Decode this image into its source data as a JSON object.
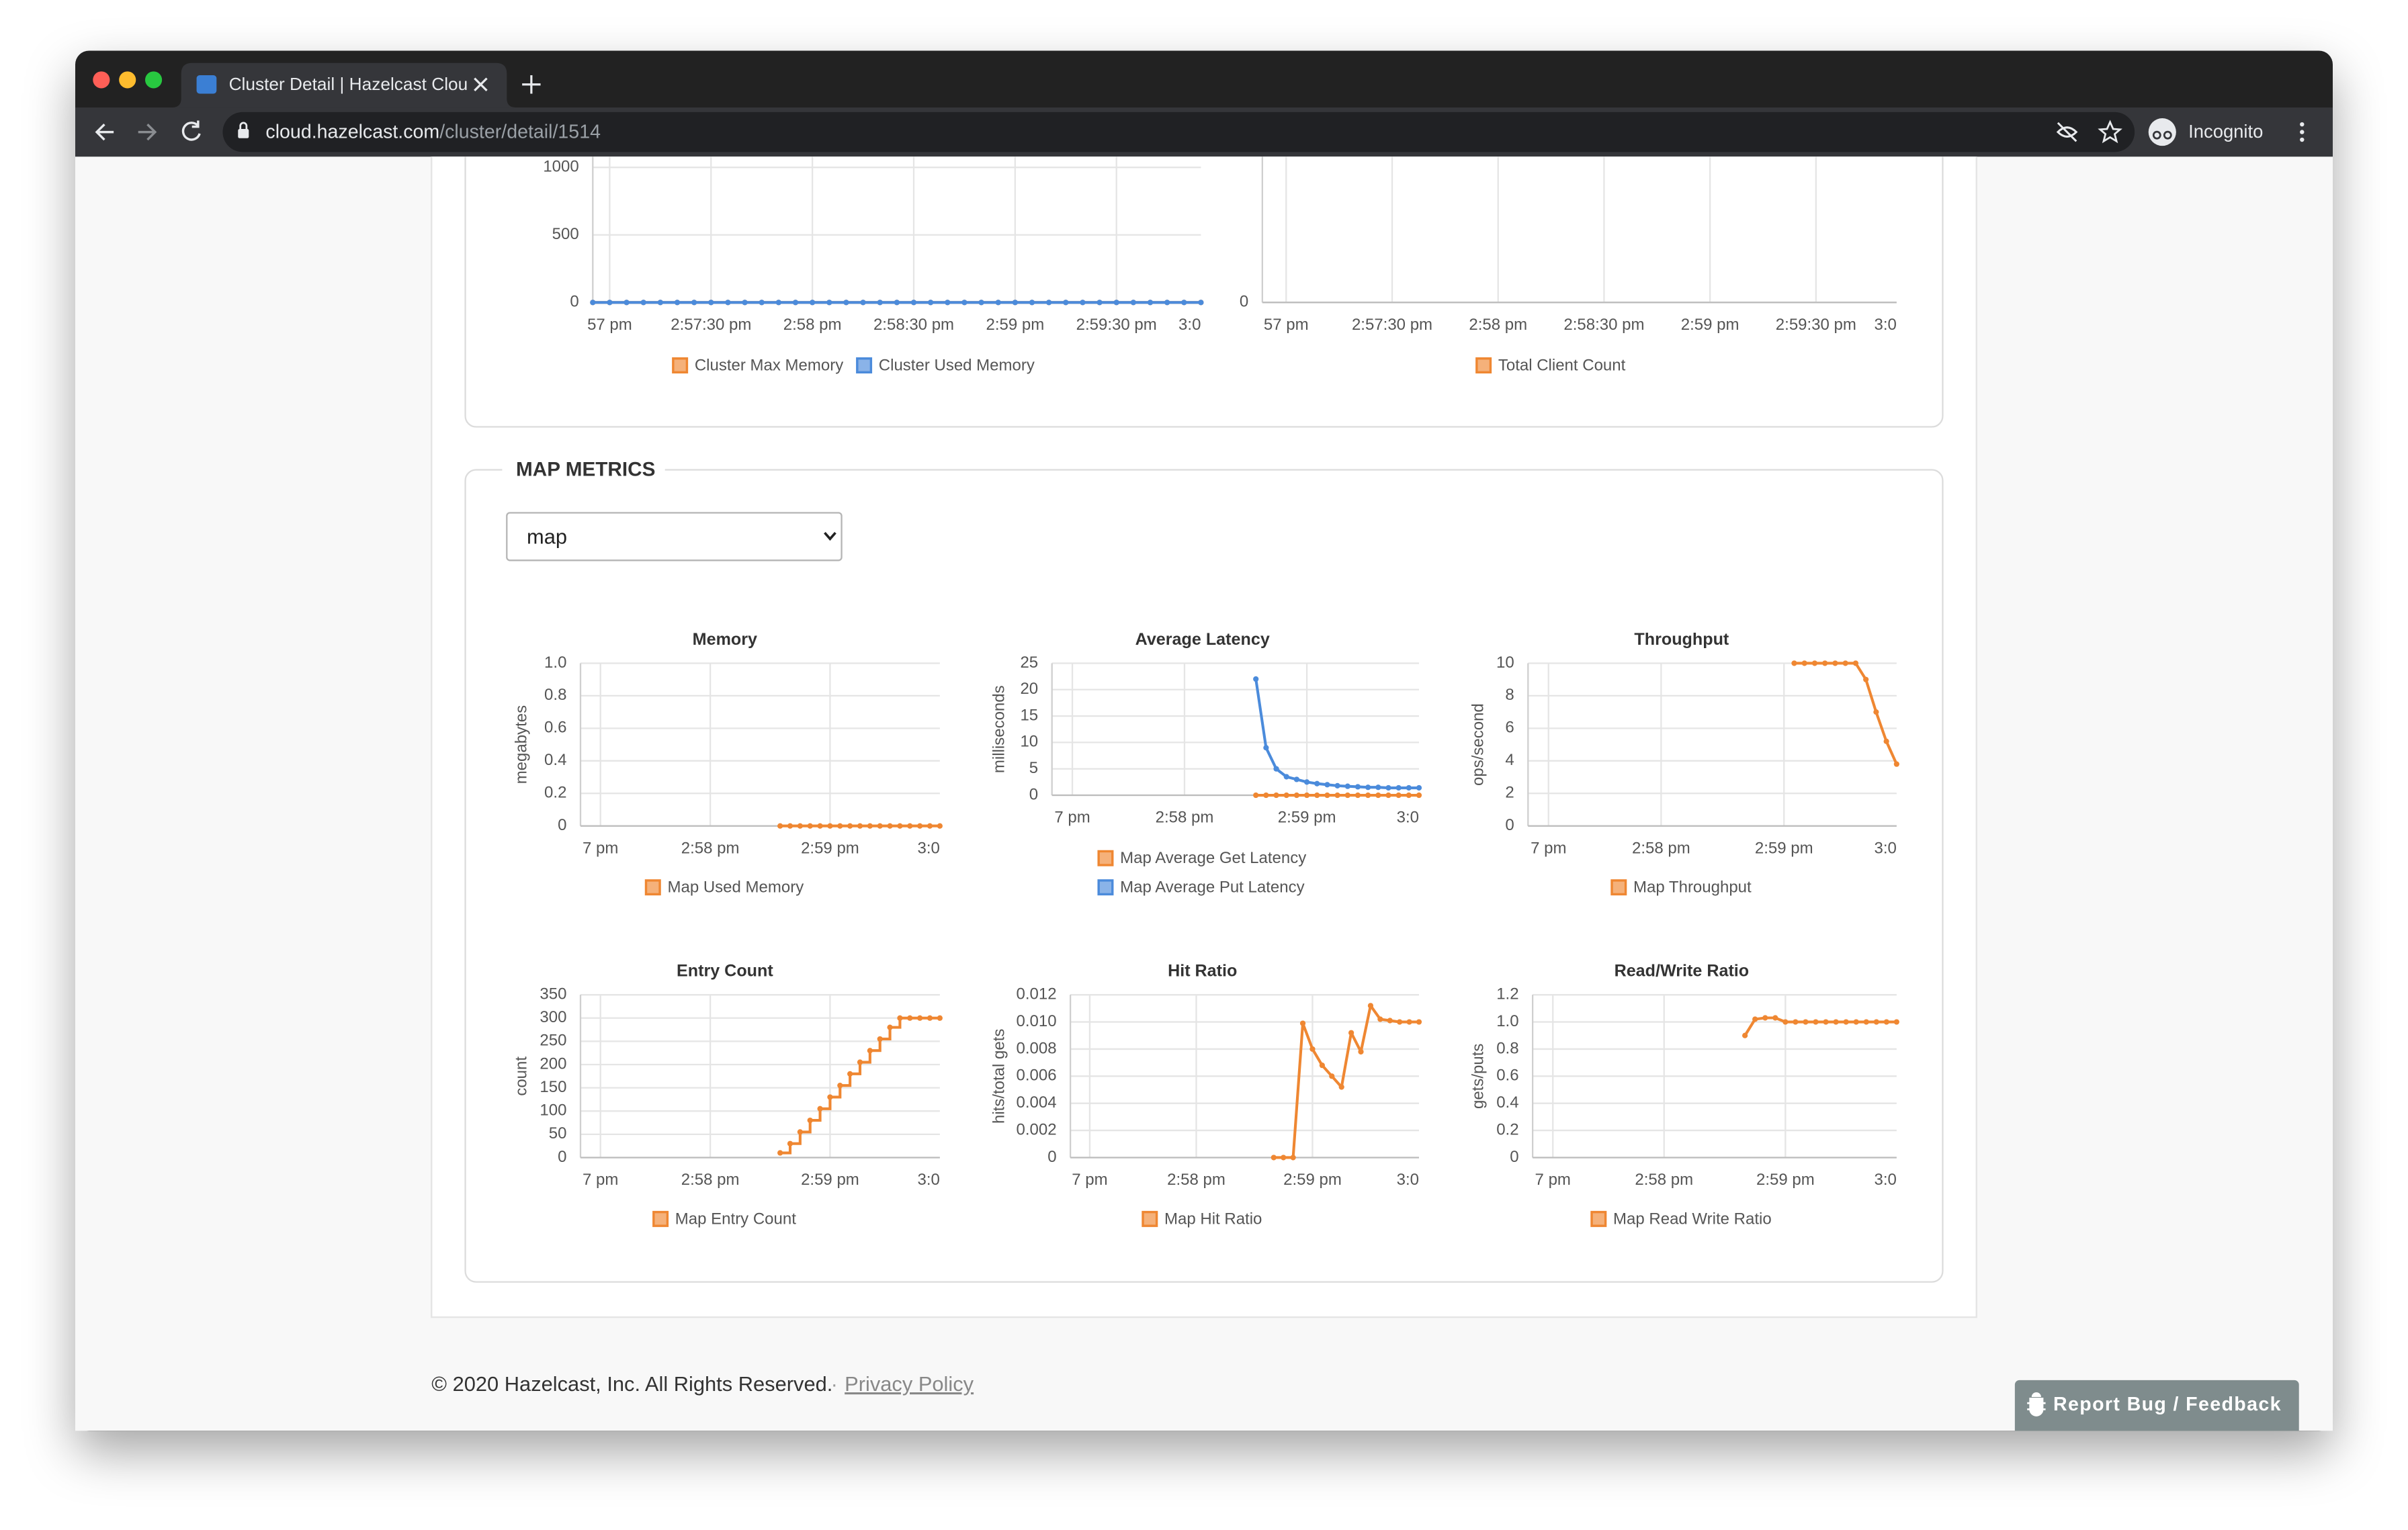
{
  "browser": {
    "tab_title": "Cluster Detail | Hazelcast Clou",
    "url_host": "cloud.hazelcast.com",
    "url_path": "/cluster/detail/1514",
    "profile": "Incognito"
  },
  "page": {
    "section_title": "MAP METRICS",
    "select_value": "map",
    "footer": {
      "copyright": "© 2020 Hazelcast, Inc. All Rights Reserved.",
      "separator": "·",
      "privacy": "Privacy Policy"
    },
    "feedback_button": "Report Bug / Feedback"
  },
  "chart_data": [
    {
      "type": "line",
      "legend": "bottom",
      "grid": true,
      "markers": true,
      "categories": [
        null,
        "57 pm",
        null,
        null,
        null,
        null,
        null,
        "2:57:30 pm",
        null,
        null,
        null,
        null,
        null,
        "2:58 pm",
        null,
        null,
        null,
        null,
        null,
        "2:58:30 pm",
        null,
        null,
        null,
        null,
        null,
        "2:59 pm",
        null,
        null,
        null,
        null,
        null,
        "2:59:30 pm",
        null,
        null,
        null,
        null,
        null,
        "3:0"
      ],
      "series": [
        {
          "name": "Cluster Max Memory",
          "color": "#ef8732",
          "values": [
            0,
            0,
            0,
            0,
            0,
            0,
            0,
            0,
            0,
            0,
            0,
            0,
            0,
            0,
            0,
            0,
            0,
            0,
            0,
            0,
            0,
            0,
            0,
            0,
            0,
            0,
            0,
            0,
            0,
            0,
            0,
            0,
            0,
            0,
            0,
            0,
            0,
            null
          ]
        },
        {
          "name": "Cluster Used Memory",
          "color": "#4b8bdb",
          "values": [
            0,
            0,
            0,
            0,
            0,
            0,
            0,
            0,
            0,
            0,
            0,
            0,
            0,
            0,
            0,
            0,
            0,
            0,
            0,
            0,
            0,
            0,
            0,
            0,
            0,
            0,
            0,
            0,
            0,
            0,
            0,
            0,
            0,
            0,
            0,
            0,
            0,
            null
          ]
        }
      ],
      "ylim": [
        0,
        1000
      ],
      "yticks": [
        0,
        500,
        1000
      ]
    },
    {
      "type": "line",
      "legend": "bottom",
      "grid": true,
      "markers": true,
      "categories": [
        null,
        "57 pm",
        null,
        null,
        null,
        null,
        null,
        "2:57:30 pm",
        null,
        null,
        null,
        null,
        null,
        "2:58 pm",
        null,
        null,
        null,
        null,
        null,
        "2:58:30 pm",
        null,
        null,
        null,
        null,
        null,
        "2:59 pm",
        null,
        null,
        null,
        null,
        null,
        "2:59:30 pm",
        null,
        null,
        null,
        null,
        null,
        "3:0"
      ],
      "series": [
        {
          "name": "Total Client Count",
          "color": "#ef8732",
          "values": [
            null,
            null,
            null,
            null,
            null,
            null,
            null,
            null,
            null,
            null,
            null,
            null,
            null,
            null,
            null,
            null,
            null,
            null,
            null,
            null,
            null,
            null,
            null,
            null,
            null,
            null,
            null,
            null,
            null,
            null,
            null,
            null,
            null,
            null,
            null,
            null,
            null,
            null
          ]
        }
      ],
      "ylim": [
        0,
        1
      ],
      "yticks": [
        0
      ]
    },
    {
      "type": "line",
      "title": "Memory",
      "y_label": "megabytes",
      "legend": "bottom",
      "grid": true,
      "markers": true,
      "categories": [
        null,
        null,
        "7 pm",
        null,
        null,
        null,
        null,
        null,
        null,
        null,
        null,
        null,
        null,
        "2:58 pm",
        null,
        null,
        null,
        null,
        null,
        null,
        null,
        null,
        null,
        null,
        null,
        "2:59 pm",
        null,
        null,
        null,
        null,
        null,
        null,
        null,
        null,
        null,
        null,
        "3:0"
      ],
      "series": [
        {
          "name": "Map Used Memory",
          "color": "#ef8732",
          "values": [
            null,
            null,
            null,
            null,
            null,
            null,
            null,
            null,
            null,
            null,
            null,
            null,
            null,
            null,
            null,
            null,
            null,
            null,
            null,
            null,
            0,
            0,
            0,
            0,
            0,
            0,
            0,
            0,
            0,
            0,
            0,
            0,
            0,
            0,
            0,
            0,
            0
          ]
        }
      ],
      "ylim": [
        0,
        1
      ],
      "yticks": [
        0,
        0.2,
        0.4,
        0.6,
        0.8,
        {
          "value": 1,
          "label": "1.0"
        }
      ]
    },
    {
      "type": "line",
      "title": "Average Latency",
      "y_label": "milliseconds",
      "legend": "bottom",
      "grid": true,
      "markers": true,
      "categories": [
        null,
        null,
        "7 pm",
        null,
        null,
        null,
        null,
        null,
        null,
        null,
        null,
        null,
        null,
        "2:58 pm",
        null,
        null,
        null,
        null,
        null,
        null,
        null,
        null,
        null,
        null,
        null,
        "2:59 pm",
        null,
        null,
        null,
        null,
        null,
        null,
        null,
        null,
        null,
        null,
        "3:0"
      ],
      "series": [
        {
          "name": "Map Average Get Latency",
          "color": "#ef8732",
          "values": [
            null,
            null,
            null,
            null,
            null,
            null,
            null,
            null,
            null,
            null,
            null,
            null,
            null,
            null,
            null,
            null,
            null,
            null,
            null,
            null,
            0,
            0,
            0,
            0,
            0,
            0,
            0,
            0,
            0,
            0,
            0,
            0,
            0,
            0,
            0,
            0,
            0
          ]
        },
        {
          "name": "Map Average Put Latency",
          "color": "#4b8bdb",
          "values": [
            null,
            null,
            null,
            null,
            null,
            null,
            null,
            null,
            null,
            null,
            null,
            null,
            null,
            null,
            null,
            null,
            null,
            null,
            null,
            null,
            22,
            9,
            5,
            3.5,
            3,
            2.5,
            2.2,
            2,
            1.8,
            1.7,
            1.6,
            1.5,
            1.5,
            1.4,
            1.4,
            1.4,
            1.4
          ]
        }
      ],
      "ylim": [
        0,
        25
      ],
      "yticks": [
        0,
        5,
        10,
        15,
        20,
        25
      ]
    },
    {
      "type": "line",
      "title": "Throughput",
      "y_label": "ops/second",
      "legend": "bottom",
      "grid": true,
      "markers": true,
      "categories": [
        null,
        null,
        "7 pm",
        null,
        null,
        null,
        null,
        null,
        null,
        null,
        null,
        null,
        null,
        "2:58 pm",
        null,
        null,
        null,
        null,
        null,
        null,
        null,
        null,
        null,
        null,
        null,
        "2:59 pm",
        null,
        null,
        null,
        null,
        null,
        null,
        null,
        null,
        null,
        null,
        "3:0"
      ],
      "series": [
        {
          "name": "Map Throughput",
          "color": "#ef8732",
          "values": [
            null,
            null,
            null,
            null,
            null,
            null,
            null,
            null,
            null,
            null,
            null,
            null,
            null,
            null,
            null,
            null,
            null,
            null,
            null,
            null,
            null,
            null,
            null,
            null,
            null,
            null,
            10,
            10,
            10,
            10,
            10,
            10,
            10,
            9,
            7,
            5.2,
            3.8
          ]
        }
      ],
      "ylim": [
        0,
        10
      ],
      "yticks": [
        0,
        2,
        4,
        6,
        8,
        10
      ]
    },
    {
      "type": "line",
      "title": "Entry Count",
      "y_label": "count",
      "legend": "bottom",
      "grid": true,
      "markers": true,
      "step": true,
      "categories": [
        null,
        null,
        "7 pm",
        null,
        null,
        null,
        null,
        null,
        null,
        null,
        null,
        null,
        null,
        "2:58 pm",
        null,
        null,
        null,
        null,
        null,
        null,
        null,
        null,
        null,
        null,
        null,
        "2:59 pm",
        null,
        null,
        null,
        null,
        null,
        null,
        null,
        null,
        null,
        null,
        "3:0"
      ],
      "series": [
        {
          "name": "Map Entry Count",
          "color": "#ef8732",
          "values": [
            null,
            null,
            null,
            null,
            null,
            null,
            null,
            null,
            null,
            null,
            null,
            null,
            null,
            null,
            null,
            null,
            null,
            null,
            null,
            null,
            10,
            30,
            55,
            80,
            105,
            130,
            155,
            180,
            205,
            230,
            255,
            280,
            300,
            300,
            300,
            300,
            300
          ]
        }
      ],
      "ylim": [
        0,
        350
      ],
      "yticks": [
        0,
        50,
        100,
        150,
        200,
        250,
        300,
        350
      ]
    },
    {
      "type": "line",
      "title": "Hit Ratio",
      "y_label": "hits/total gets",
      "legend": "bottom",
      "grid": true,
      "markers": true,
      "categories": [
        null,
        null,
        "7 pm",
        null,
        null,
        null,
        null,
        null,
        null,
        null,
        null,
        null,
        null,
        "2:58 pm",
        null,
        null,
        null,
        null,
        null,
        null,
        null,
        null,
        null,
        null,
        null,
        "2:59 pm",
        null,
        null,
        null,
        null,
        null,
        null,
        null,
        null,
        null,
        null,
        "3:0"
      ],
      "series": [
        {
          "name": "Map Hit Ratio",
          "color": "#ef8732",
          "values": [
            null,
            null,
            null,
            null,
            null,
            null,
            null,
            null,
            null,
            null,
            null,
            null,
            null,
            null,
            null,
            null,
            null,
            null,
            null,
            null,
            null,
            0,
            0,
            0,
            0.0099,
            0.008,
            0.0068,
            0.006,
            0.0052,
            0.0092,
            0.0078,
            0.0112,
            0.0102,
            0.0101,
            0.01,
            0.01,
            0.01
          ]
        }
      ],
      "ylim": [
        0,
        0.012
      ],
      "yticks": [
        0,
        0.002,
        0.004,
        0.006,
        0.008,
        {
          "value": 0.01,
          "label": "0.010"
        },
        0.012
      ]
    },
    {
      "type": "line",
      "title": "Read/Write Ratio",
      "y_label": "gets/puts",
      "legend": "bottom",
      "grid": true,
      "markers": true,
      "categories": [
        null,
        null,
        "7 pm",
        null,
        null,
        null,
        null,
        null,
        null,
        null,
        null,
        null,
        null,
        "2:58 pm",
        null,
        null,
        null,
        null,
        null,
        null,
        null,
        null,
        null,
        null,
        null,
        "2:59 pm",
        null,
        null,
        null,
        null,
        null,
        null,
        null,
        null,
        null,
        null,
        "3:0"
      ],
      "series": [
        {
          "name": "Map Read Write Ratio",
          "color": "#ef8732",
          "values": [
            null,
            null,
            null,
            null,
            null,
            null,
            null,
            null,
            null,
            null,
            null,
            null,
            null,
            null,
            null,
            null,
            null,
            null,
            null,
            null,
            null,
            0.9,
            1.02,
            1.03,
            1.03,
            1,
            1,
            1,
            1,
            1,
            1,
            1,
            1,
            1,
            1,
            1,
            1
          ]
        }
      ],
      "ylim": [
        0,
        1.2
      ],
      "yticks": [
        0,
        0.2,
        0.4,
        0.6,
        0.8,
        {
          "value": 1,
          "label": "1.0"
        },
        1.2
      ]
    }
  ]
}
